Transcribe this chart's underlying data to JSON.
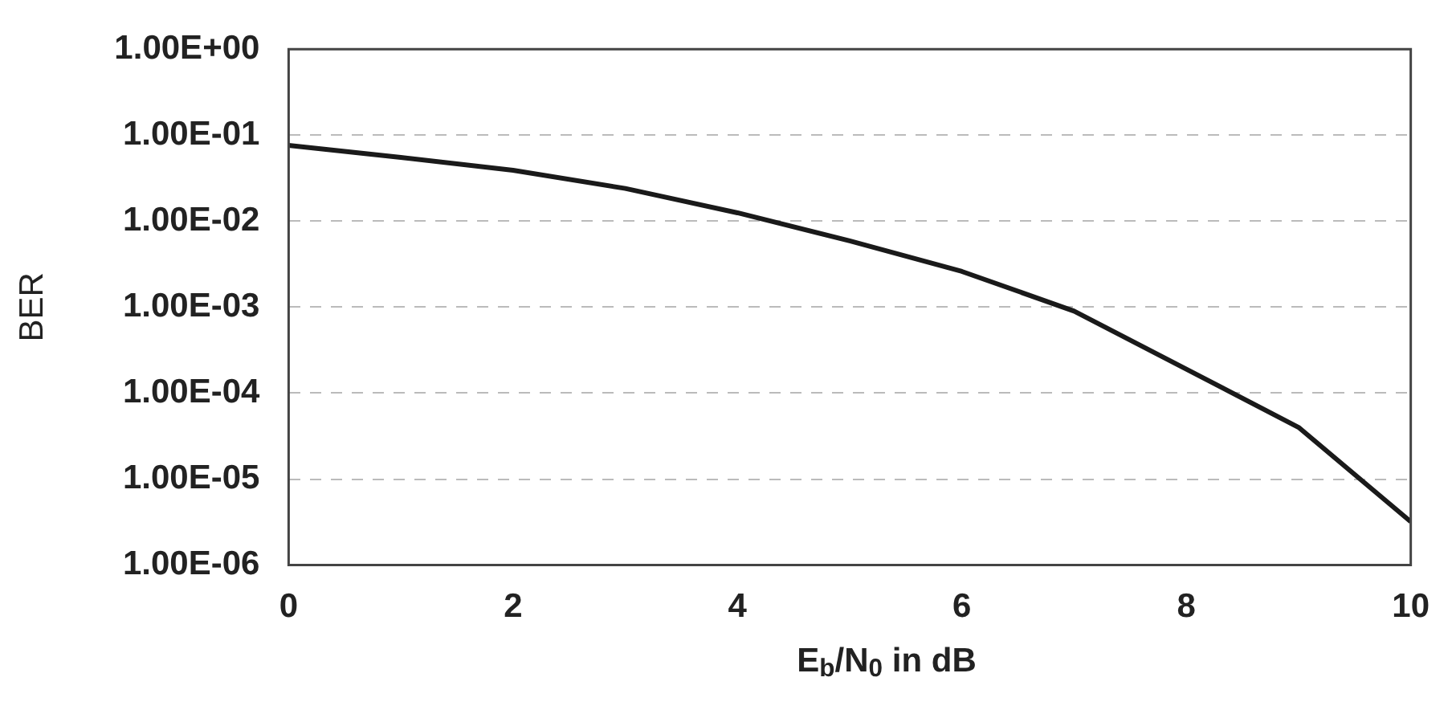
{
  "chart_data": {
    "type": "line",
    "xlabel": "E$_{b}$/N$_{0}$ in dB",
    "ylabel": "BER",
    "x": [
      0,
      1,
      2,
      3,
      4,
      5,
      6,
      7,
      8,
      9,
      10
    ],
    "series": [
      {
        "color": "#1a1a1a",
        "values": [
          0.076,
          0.055,
          0.039,
          0.024,
          0.0125,
          0.0059,
          0.0026,
          0.0009,
          0.00019,
          4e-05,
          3.2e-06
        ]
      }
    ],
    "log": "y",
    "xlim": [
      0,
      10
    ],
    "xticks": [
      0,
      2,
      4,
      6,
      8,
      10
    ],
    "ylim": [
      1e-06,
      1
    ],
    "yticks": [
      {
        "value": 1e-06,
        "label": "1.00E-06"
      },
      {
        "value": 1e-05,
        "label": "1.00E-05"
      },
      {
        "value": 0.0001,
        "label": "1.00E-04"
      },
      {
        "value": 0.001,
        "label": "1.00E-03"
      },
      {
        "value": 0.01,
        "label": "1.00E-02"
      },
      {
        "value": 0.1,
        "label": "1.00E-01"
      },
      {
        "value": 1,
        "label": "1.00E+00"
      }
    ],
    "grid": "y",
    "legend": false,
    "marker": "none",
    "line_style": "solid"
  }
}
